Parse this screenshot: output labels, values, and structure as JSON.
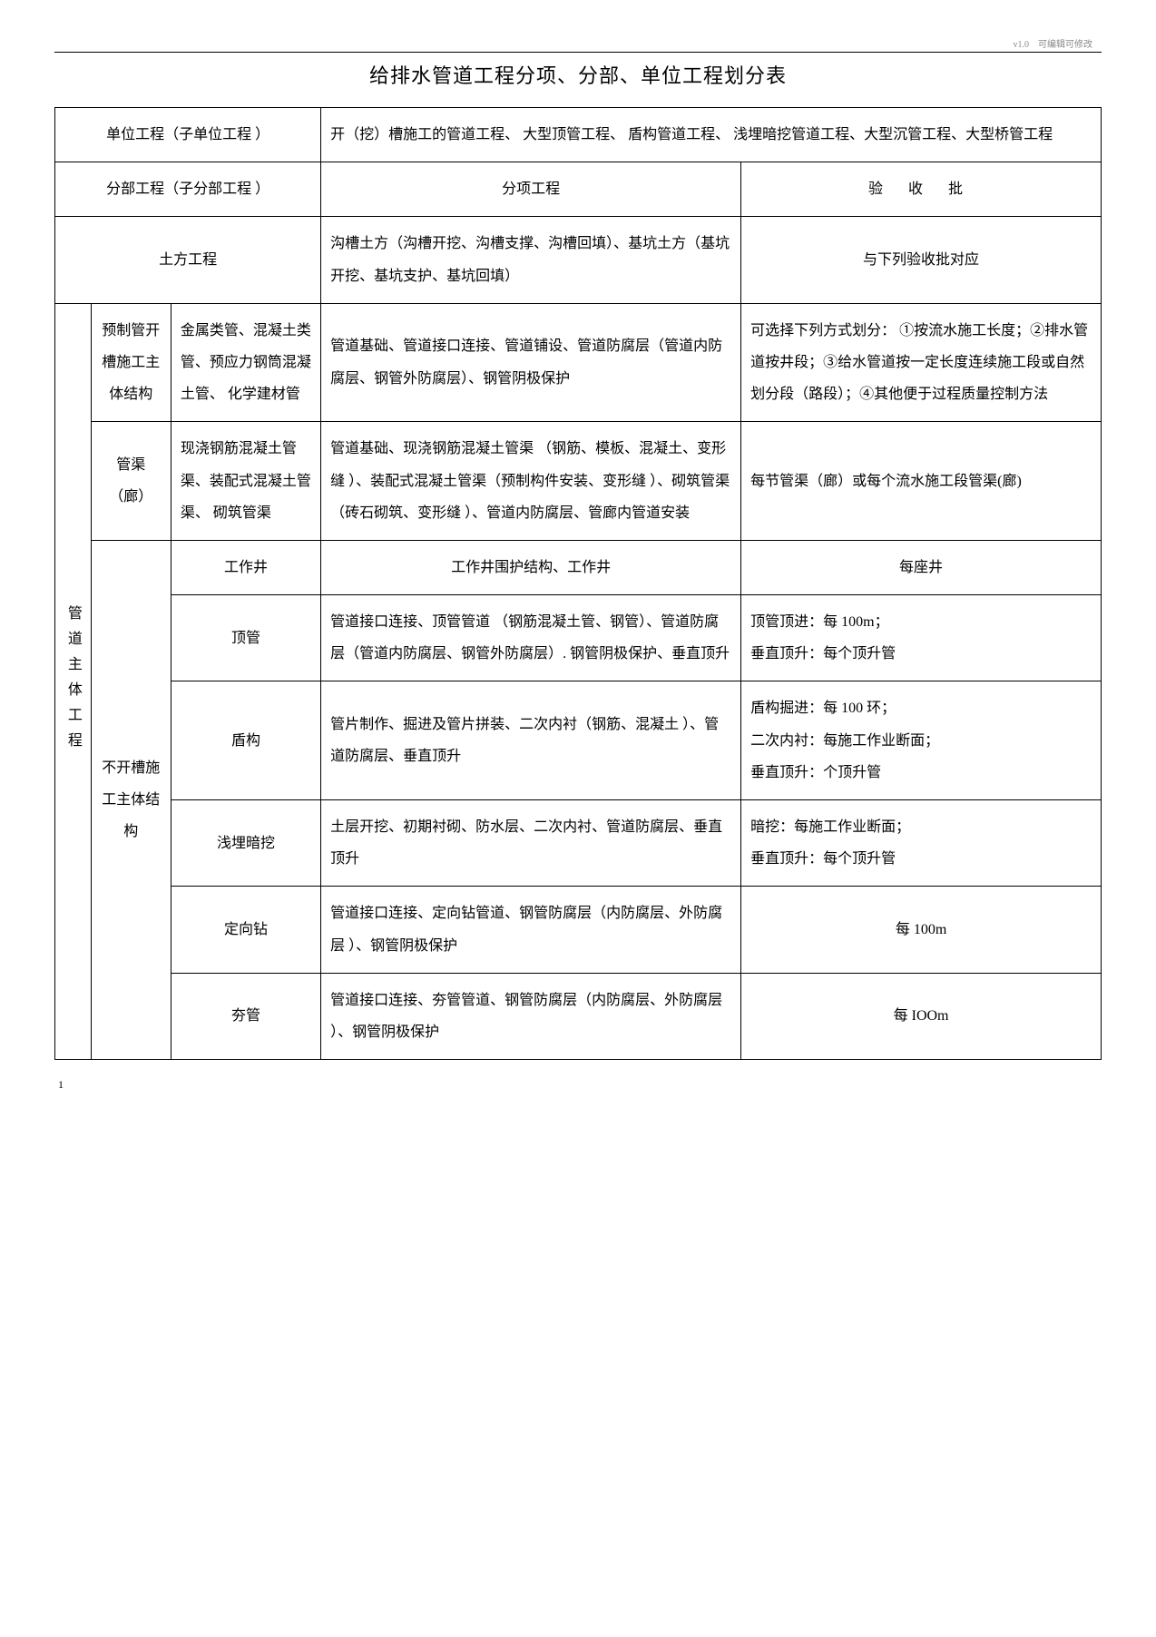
{
  "meta": {
    "version": "v1.0",
    "note": "可编辑可修改"
  },
  "title": "给排水管道工程分项、分部、单位工程划分表",
  "headers": {
    "unit_project": "单位工程（子单位工程 ）",
    "unit_project_desc": "开（挖）槽施工的管道工程、 大型顶管工程、 盾构管道工程、 浅埋暗挖管道工程、大型沉管工程、大型桥管工程",
    "sub_project": "分部工程（子分部工程 ）",
    "item_project": "分项工程",
    "acceptance": "验  收  批"
  },
  "rows": {
    "earthwork": {
      "name": "土方工程",
      "items": "沟槽土方（沟槽开挖、沟槽支撑、沟槽回填）、基坑土方（基坑开挖、基坑支护、基坑回填）",
      "accept": "与下列验收批对应"
    },
    "main_label": "管道主体工程",
    "prefab": {
      "name": "预制管开槽施工主体结构",
      "sub": "金属类管、混凝土类管、预应力钢筒混凝土管、 化学建材管",
      "items": "管道基础、管道接口连接、管道铺设、管道防腐层（管道内防腐层、钢管外防腐层）、钢管阴极保护",
      "accept": "可选择下列方式划分： ①按流水施工长度；②排水管道按井段；③给水管道按一定长度连续施工段或自然划分段（路段）；④其他便于过程质量控制方法"
    },
    "gallery": {
      "name": "管渠（廊）",
      "sub": "现浇钢筋混凝土管渠、装配式混凝土管渠、 砌筑管渠",
      "items": "管道基础、现浇钢筋混凝土管渠  （钢筋、模板、混凝土、变形缝 ）、装配式混凝土管渠（预制构件安装、变形缝 ）、砌筑管渠（砖石砌筑、变形缝 ）、管道内防腐层、管廊内管道安装",
      "accept": "每节管渠（廊）或每个流水施工段管渠(廊)"
    },
    "no_trench_label": "不开槽施工主体结构",
    "work_well": {
      "sub": "工作井",
      "items": "工作井围护结构、工作井",
      "accept": "每座井"
    },
    "pipe_jacking": {
      "sub": "顶管",
      "items": "管道接口连接、顶管管道 （钢筋混凝土管、钢管）、管道防腐层（管道内防腐层、钢管外防腐层）. 钢管阴极保护、垂直顶升",
      "accept": "顶管顶进：每 100m；\n垂直顶升：每个顶升管"
    },
    "shield": {
      "sub": "盾构",
      "items": "管片制作、掘进及管片拼装、二次内衬（钢筋、混凝土 ）、管道防腐层、垂直顶升",
      "accept": "盾构掘进：每 100 环；\n二次内衬：每施工作业断面；\n垂直顶升：个顶升管"
    },
    "shallow": {
      "sub": "浅埋暗挖",
      "items": "土层开挖、初期衬砌、防水层、二次内衬、管道防腐层、垂直顶升",
      "accept": "暗挖：每施工作业断面；\n垂直顶升：每个顶升管"
    },
    "directional": {
      "sub": "定向钻",
      "items": "管道接口连接、定向钻管道、钢管防腐层（内防腐层、外防腐层 ）、钢管阴极保护",
      "accept": "每 100m"
    },
    "ramming": {
      "sub": "夯管",
      "items": "管道接口连接、夯管管道、钢管防腐层（内防腐层、外防腐层 ）、钢管阴极保护",
      "accept": "每 IOOm"
    }
  },
  "page_num": "1"
}
